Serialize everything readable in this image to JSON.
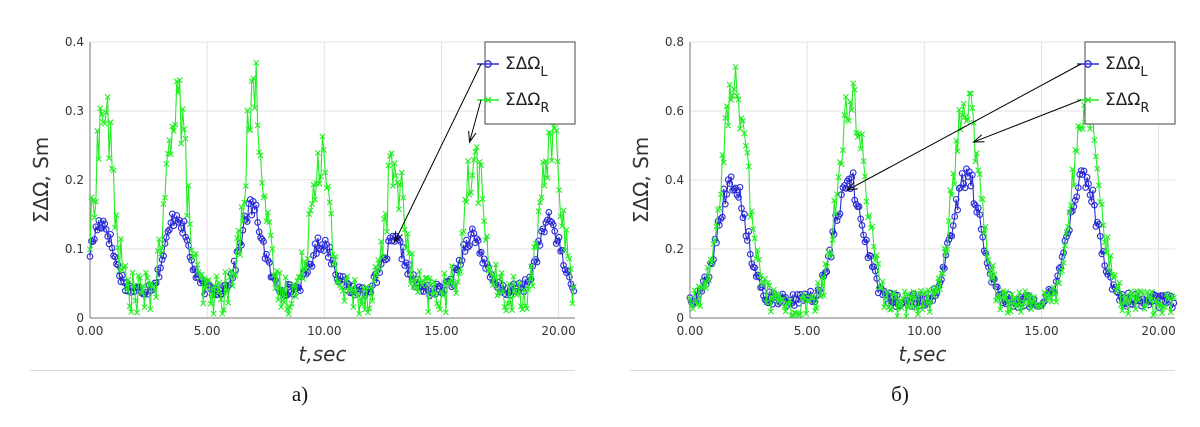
{
  "chart_data": [
    {
      "type": "line",
      "caption": "a)",
      "xlabel": "t,sec",
      "ylabel": "ΣΔΩ, Sm",
      "xlim": [
        0,
        20.7
      ],
      "ylim": [
        0,
        0.4
      ],
      "x_ticks": [
        0,
        5,
        10,
        15,
        20
      ],
      "x_tick_labels": [
        "0.00",
        "5.00",
        "10.00",
        "15.00",
        "20.00"
      ],
      "y_ticks": [
        0,
        0.1,
        0.2,
        0.3,
        0.4
      ],
      "y_tick_labels": [
        "0",
        "0.1",
        "0.2",
        "0.3",
        "0.4"
      ],
      "grid": true,
      "legend": "top-right",
      "period": 3.15,
      "series": [
        {
          "name_main": "ΣΔΩ",
          "name_sub": "L",
          "color": "#2b2bd6",
          "marker": "circle",
          "peak_times": [
            0.5,
            3.7,
            6.9,
            9.9,
            13.0,
            16.3,
            19.6
          ],
          "peak_values": [
            0.14,
            0.15,
            0.16,
            0.11,
            0.11,
            0.12,
            0.14
          ],
          "baseline": 0.04,
          "noise": 0.012,
          "width": 0.65
        },
        {
          "name_main": "ΣΔΩ",
          "name_sub": "R",
          "color": "#22ee22",
          "marker": "x",
          "peak_times": [
            0.6,
            3.7,
            7.0,
            9.8,
            13.0,
            16.4,
            19.7
          ],
          "peak_values": [
            0.3,
            0.33,
            0.33,
            0.24,
            0.22,
            0.23,
            0.27
          ],
          "baseline": 0.035,
          "noise": 0.045,
          "width": 0.55
        }
      ],
      "annotation_targets": [
        {
          "series": "L",
          "x": 13.0,
          "y": 0.11
        },
        {
          "series": "R",
          "x": 16.2,
          "y": 0.255
        }
      ]
    },
    {
      "type": "line",
      "caption": "б)",
      "xlabel": "t,sec",
      "ylabel": "ΣΔΩ, Sm",
      "xlim": [
        0,
        20.7
      ],
      "ylim": [
        0,
        0.8
      ],
      "x_ticks": [
        0,
        5,
        10,
        15,
        20
      ],
      "x_tick_labels": [
        "0.00",
        "5.00",
        "10.00",
        "15.00",
        "20.00"
      ],
      "y_ticks": [
        0,
        0.2,
        0.4,
        0.6,
        0.8
      ],
      "y_tick_labels": [
        "0",
        "0.2",
        "0.4",
        "0.6",
        "0.8"
      ],
      "grid": true,
      "legend": "top-right",
      "period": 5.0,
      "series": [
        {
          "name_main": "ΣΔΩ",
          "name_sub": "L",
          "color": "#2b2bd6",
          "marker": "circle",
          "peak_times": [
            1.8,
            6.8,
            11.8,
            16.8
          ],
          "peak_values": [
            0.4,
            0.4,
            0.41,
            0.41
          ],
          "baseline": 0.05,
          "noise": 0.03,
          "width": 0.85
        },
        {
          "name_main": "ΣΔΩ",
          "name_sub": "R",
          "color": "#22ee22",
          "marker": "x",
          "peak_times": [
            1.9,
            6.9,
            11.8,
            16.9
          ],
          "peak_values": [
            0.66,
            0.64,
            0.63,
            0.62
          ],
          "baseline": 0.04,
          "noise": 0.06,
          "width": 0.8
        }
      ],
      "annotation_targets": [
        {
          "series": "L",
          "x": 6.7,
          "y": 0.37
        },
        {
          "series": "R",
          "x": 12.1,
          "y": 0.51
        }
      ]
    }
  ]
}
